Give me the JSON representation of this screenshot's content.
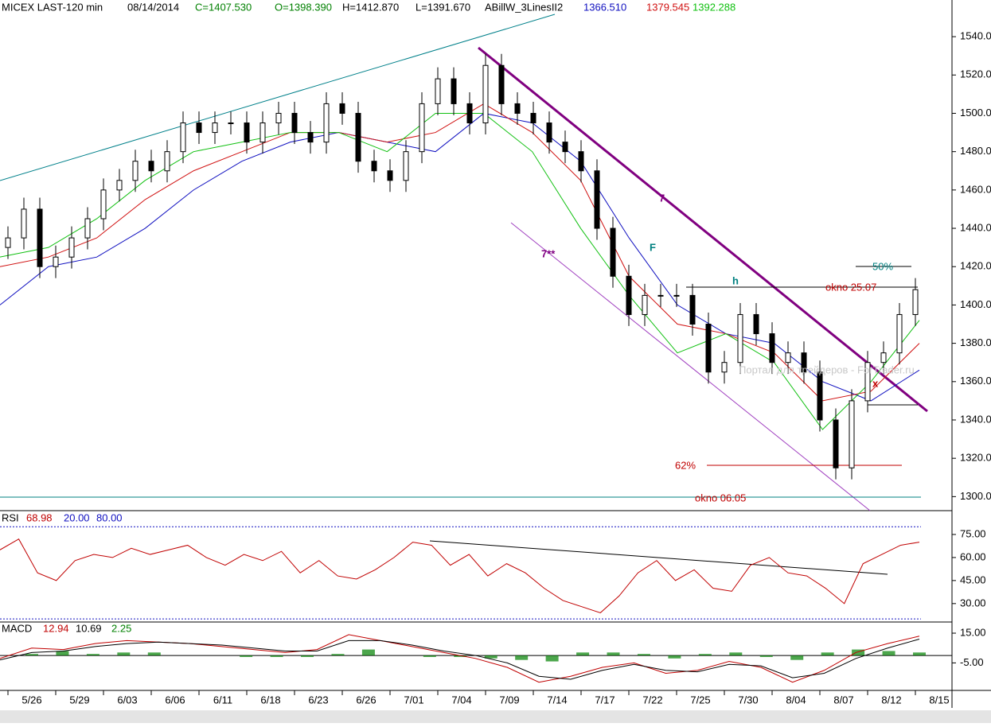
{
  "chart_data": [
    {
      "type": "candlestick",
      "title": "MICEX LAST-120 min",
      "date": "08/14/2014",
      "quote": [
        "C=1407.530",
        "O=1398.390",
        "H=1412.870",
        "L=1391.670"
      ],
      "quote_colors": [
        "#008000",
        "#008000",
        "#000000",
        "#000000"
      ],
      "indicator": "ABillW_3LinesII2",
      "open": [
        1430,
        1435,
        1450,
        1420,
        1425,
        1435,
        1445,
        1460,
        1465,
        1475,
        1470,
        1480,
        1495,
        1490,
        1495,
        1495,
        1485,
        1495,
        1500,
        1490,
        1485,
        1505,
        1500,
        1475,
        1470,
        1465,
        1480,
        1505,
        1518,
        1505,
        1495,
        1525,
        1505,
        1500,
        1495,
        1485,
        1480,
        1470,
        1440,
        1415,
        1395,
        1405,
        1405,
        1405,
        1390,
        1365,
        1370,
        1395,
        1385,
        1370,
        1375,
        1365,
        1340,
        1315,
        1350,
        1370,
        1375,
        1395
      ],
      "high": [
        1441,
        1456,
        1456,
        1431,
        1441,
        1451,
        1466,
        1471,
        1481,
        1481,
        1486,
        1501,
        1501,
        1501,
        1501,
        1501,
        1501,
        1506,
        1506,
        1496,
        1511,
        1511,
        1506,
        1481,
        1476,
        1486,
        1511,
        1524,
        1524,
        1511,
        1531,
        1531,
        1511,
        1506,
        1501,
        1491,
        1486,
        1476,
        1446,
        1421,
        1411,
        1411,
        1411,
        1411,
        1396,
        1376,
        1401,
        1401,
        1391,
        1381,
        1381,
        1371,
        1346,
        1356,
        1376,
        1381,
        1401,
        1414
      ],
      "low": [
        1424,
        1429,
        1414,
        1414,
        1419,
        1429,
        1439,
        1454,
        1459,
        1464,
        1464,
        1474,
        1484,
        1484,
        1489,
        1479,
        1479,
        1489,
        1484,
        1479,
        1479,
        1494,
        1469,
        1464,
        1459,
        1459,
        1474,
        1499,
        1499,
        1489,
        1489,
        1499,
        1494,
        1489,
        1479,
        1474,
        1464,
        1434,
        1409,
        1389,
        1389,
        1399,
        1399,
        1384,
        1359,
        1359,
        1364,
        1379,
        1364,
        1364,
        1359,
        1334,
        1309,
        1309,
        1344,
        1364,
        1369,
        1389
      ],
      "close": [
        1435,
        1450,
        1420,
        1425,
        1435,
        1445,
        1460,
        1465,
        1475,
        1470,
        1480,
        1495,
        1490,
        1495,
        1495,
        1485,
        1495,
        1500,
        1490,
        1485,
        1505,
        1500,
        1475,
        1470,
        1465,
        1480,
        1505,
        1518,
        1505,
        1495,
        1525,
        1505,
        1500,
        1495,
        1485,
        1480,
        1470,
        1440,
        1415,
        1395,
        1405,
        1405,
        1405,
        1390,
        1365,
        1370,
        1395,
        1385,
        1370,
        1375,
        1365,
        1340,
        1315,
        1350,
        1370,
        1375,
        1395,
        1408
      ],
      "series": [
        {
          "label": "1366.510",
          "color": "#1010c0",
          "values": [
            1400,
            1420,
            1425,
            1440,
            1460,
            1475,
            1485,
            1490,
            1485,
            1480,
            1500,
            1495,
            1475,
            1435,
            1400,
            1385,
            1380,
            1360,
            1350,
            1366
          ]
        },
        {
          "label": "1379.545",
          "color": "#d01010",
          "values": [
            1420,
            1425,
            1435,
            1455,
            1470,
            1480,
            1490,
            1490,
            1485,
            1490,
            1505,
            1490,
            1465,
            1415,
            1390,
            1385,
            1375,
            1350,
            1355,
            1380
          ]
        },
        {
          "label": "1392.288",
          "color": "#10c010",
          "values": [
            1425,
            1430,
            1445,
            1465,
            1480,
            1485,
            1490,
            1490,
            1480,
            1500,
            1500,
            1480,
            1440,
            1405,
            1375,
            1385,
            1370,
            1335,
            1360,
            1392
          ]
        }
      ],
      "ylim": [
        1296,
        1550
      ],
      "yticks": [
        {
          "value": 1300,
          "label": "1300.00"
        },
        {
          "value": 1320,
          "label": "1320.00"
        },
        {
          "value": 1340,
          "label": "1340.00"
        },
        {
          "value": 1360,
          "label": "1360.00"
        },
        {
          "value": 1380,
          "label": "1380.00"
        },
        {
          "value": 1400,
          "label": "1400.00"
        },
        {
          "value": 1420,
          "label": "1420.00"
        },
        {
          "value": 1440,
          "label": "1440.00"
        },
        {
          "value": 1460,
          "label": "1460.00"
        },
        {
          "value": 1480,
          "label": "1480.00"
        },
        {
          "value": 1500,
          "label": "1500.00"
        },
        {
          "value": 1520,
          "label": "1520.00"
        },
        {
          "value": 1540,
          "label": "1540.00"
        }
      ],
      "annotations": [
        {
          "text": "7",
          "color": "#800080"
        },
        {
          "text": "7**",
          "color": "#800080"
        },
        {
          "text": "F",
          "color": "#008080"
        },
        {
          "text": "h",
          "color": "#008080"
        },
        {
          "text": "okno 25.07",
          "color": "#c00000"
        },
        {
          "text": "50%",
          "color": "#008080"
        },
        {
          "text": "62%",
          "color": "#c00000"
        },
        {
          "text": "okno 06.05",
          "color": "#c00000"
        },
        {
          "text": "x",
          "color": "#c00000"
        },
        {
          "text": "Портал для трейдеров - ForTrader.ru",
          "color": "#c8c8c8"
        }
      ]
    },
    {
      "type": "line",
      "title": "RSI",
      "value_label": "68.98",
      "levels": [
        {
          "value": 20,
          "label": "20.00"
        },
        {
          "value": 80,
          "label": "80.00"
        }
      ],
      "series": [
        {
          "color": "#c00000",
          "values": [
            65,
            72,
            50,
            45,
            58,
            62,
            60,
            66,
            62,
            65,
            68,
            60,
            55,
            62,
            58,
            64,
            50,
            58,
            48,
            46,
            52,
            60,
            70,
            68,
            55,
            62,
            48,
            56,
            50,
            40,
            32,
            28,
            24,
            35,
            50,
            58,
            45,
            52,
            40,
            38,
            55,
            60,
            50,
            48,
            40,
            30,
            56,
            62,
            68,
            70
          ]
        }
      ],
      "ylim": [
        18,
        83
      ],
      "yticks": [
        {
          "value": 30,
          "label": "30.00"
        },
        {
          "value": 45,
          "label": "45.00"
        },
        {
          "value": 60,
          "label": "60.00"
        },
        {
          "value": 75,
          "label": "75.00"
        }
      ]
    },
    {
      "type": "line",
      "title": "MACD",
      "series": [
        {
          "label": "12.94",
          "color": "#c00000",
          "values": [
            -2,
            5,
            4,
            8,
            10,
            9,
            8,
            6,
            4,
            2,
            4,
            14,
            10,
            6,
            2,
            -2,
            -8,
            -18,
            -14,
            -8,
            -5,
            -12,
            -10,
            -4,
            -8,
            -18,
            -10,
            2,
            8,
            13
          ]
        },
        {
          "label": "10.69",
          "color": "#000000",
          "values": [
            -3,
            2,
            3,
            6,
            8,
            9,
            8,
            7,
            5,
            3,
            3,
            10,
            10,
            7,
            3,
            0,
            -5,
            -14,
            -16,
            -10,
            -6,
            -10,
            -11,
            -6,
            -7,
            -15,
            -12,
            -2,
            5,
            11
          ]
        }
      ],
      "histogram": {
        "label": "2.25",
        "color": "#008000",
        "values": [
          1,
          3,
          1,
          2,
          2,
          0,
          0,
          -1,
          -1,
          -1,
          1,
          4,
          0,
          -1,
          -1,
          -2,
          -3,
          -4,
          2,
          2,
          1,
          -2,
          1,
          2,
          -1,
          -3,
          2,
          4,
          3,
          2
        ]
      },
      "ylim": [
        -23.5,
        22.5
      ],
      "yticks": [
        {
          "value": -5,
          "label": "-5.00"
        },
        {
          "value": 15,
          "label": "15.00"
        }
      ]
    }
  ],
  "date_axis": [
    "5/26",
    "5/29",
    "6/03",
    "6/06",
    "6/11",
    "6/18",
    "6/23",
    "6/26",
    "7/01",
    "7/04",
    "7/09",
    "7/14",
    "7/17",
    "7/22",
    "7/25",
    "7/30",
    "8/04",
    "8/07",
    "8/12",
    "8/15"
  ]
}
